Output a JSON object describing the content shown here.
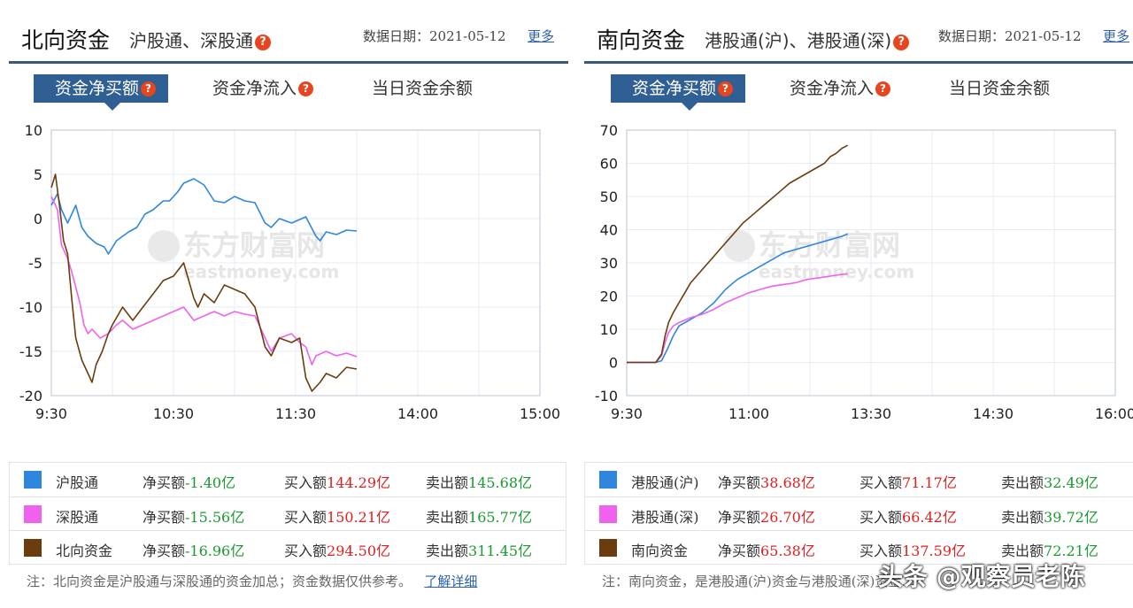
{
  "north": {
    "title": "北向资金",
    "subtitle": "沪股通、深股通",
    "date_label": "数据日期：2021-05-12",
    "more": "更多",
    "tabs": [
      "资金净买额",
      "资金净流入",
      "当日资金余额"
    ],
    "watermark_cn": "东方财富网",
    "watermark_en": "eastmoney.com",
    "legend": [
      {
        "name": "沪股通",
        "color": "#2e86de",
        "net": "净买额-1.40亿",
        "net_prefix": "净买额",
        "net_value": "-1.40亿",
        "buy_prefix": "买入额",
        "buy_value": "144.29亿",
        "sell_prefix": "卖出额",
        "sell_value": "145.68亿"
      },
      {
        "name": "深股通",
        "color": "#f062ee",
        "net_prefix": "净买额",
        "net_value": "-15.56亿",
        "buy_prefix": "买入额",
        "buy_value": "150.21亿",
        "sell_prefix": "卖出额",
        "sell_value": "165.77亿"
      },
      {
        "name": "北向资金",
        "color": "#6b3d0e",
        "net_prefix": "净买额",
        "net_value": "-16.96亿",
        "buy_prefix": "买入额",
        "buy_value": "294.50亿",
        "sell_prefix": "卖出额",
        "sell_value": "311.45亿"
      }
    ],
    "note": "注：北向资金是沪股通与深股通的资金加总；资金数据仅供参考。",
    "note_link": "了解详细"
  },
  "south": {
    "title": "南向资金",
    "subtitle": "港股通(沪)、港股通(深)",
    "date_label": "数据日期：2021-05-12",
    "more": "更多",
    "tabs": [
      "资金净买额",
      "资金净流入",
      "当日资金余额"
    ],
    "watermark_cn": "东方财富网",
    "watermark_en": "eastmoney.com",
    "legend": [
      {
        "name": "港股通(沪)",
        "color": "#2e86de",
        "net_prefix": "净买额",
        "net_value": "38.68亿",
        "buy_prefix": "买入额",
        "buy_value": "71.17亿",
        "sell_prefix": "卖出额",
        "sell_value": "32.49亿"
      },
      {
        "name": "港股通(深)",
        "color": "#f062ee",
        "net_prefix": "净买额",
        "net_value": "26.70亿",
        "buy_prefix": "买入额",
        "buy_value": "66.42亿",
        "sell_prefix": "卖出额",
        "sell_value": "39.72亿"
      },
      {
        "name": "南向资金",
        "color": "#6b3d0e",
        "net_prefix": "净买额",
        "net_value": "65.38亿",
        "buy_prefix": "买入额",
        "buy_value": "137.59亿",
        "sell_prefix": "卖出额",
        "sell_value": "72.21亿"
      }
    ],
    "note": "注：南向资金，是港股通(沪)资金与港股通(深)资金...",
    "note_link": ""
  },
  "overlay_watermark": "头条 @观察员老陈",
  "chart_data": [
    {
      "type": "line",
      "title": "",
      "x_ticks": [
        "9:30",
        "10:30",
        "11:30",
        "14:00",
        "15:00"
      ],
      "x_unit": "minutes_since_open",
      "x_range": [
        0,
        240
      ],
      "y_ticks": [
        10,
        5,
        0,
        -5,
        -10,
        -15,
        -20
      ],
      "ylim": [
        -20,
        10
      ],
      "grid": true,
      "series": [
        {
          "name": "沪股通",
          "color": "#2e86de",
          "x": [
            0,
            3,
            5,
            8,
            12,
            15,
            18,
            22,
            26,
            28,
            32,
            35,
            38,
            42,
            46,
            50,
            55,
            58,
            62,
            65,
            70,
            75,
            80,
            85,
            90,
            95,
            100,
            105,
            108,
            112,
            118,
            125,
            130,
            132,
            135,
            140,
            145,
            150
          ],
          "y": [
            1.5,
            2.8,
            1.0,
            -0.5,
            1.5,
            -1.0,
            -2.0,
            -2.8,
            -3.2,
            -4.0,
            -2.5,
            -2.0,
            -1.5,
            -1.0,
            0.5,
            1.0,
            2.0,
            2.0,
            3.0,
            4.0,
            4.5,
            3.8,
            2.0,
            1.8,
            2.5,
            2.0,
            1.8,
            -0.5,
            -1.0,
            0.0,
            -0.5,
            0.2,
            -2.0,
            -2.5,
            -1.5,
            -1.8,
            -1.3,
            -1.4
          ]
        },
        {
          "name": "深股通",
          "color": "#f062ee",
          "x": [
            0,
            3,
            5,
            8,
            10,
            14,
            16,
            18,
            20,
            24,
            28,
            32,
            35,
            40,
            45,
            50,
            55,
            60,
            65,
            70,
            75,
            80,
            85,
            90,
            95,
            100,
            105,
            108,
            112,
            118,
            122,
            125,
            128,
            130,
            135,
            140,
            145,
            150
          ],
          "y": [
            2.5,
            1.0,
            -3.0,
            -4.5,
            -6.0,
            -9.5,
            -12.0,
            -13.0,
            -12.5,
            -13.5,
            -13.0,
            -12.0,
            -11.5,
            -12.5,
            -12.0,
            -11.5,
            -11.0,
            -10.5,
            -10.0,
            -11.5,
            -11.0,
            -10.5,
            -11.0,
            -10.5,
            -10.8,
            -11.0,
            -13.5,
            -15.0,
            -13.5,
            -13.0,
            -14.0,
            -14.5,
            -16.5,
            -15.5,
            -15.0,
            -15.5,
            -15.2,
            -15.6
          ]
        },
        {
          "name": "北向资金",
          "color": "#6b3d0e",
          "x": [
            0,
            2,
            4,
            6,
            8,
            10,
            12,
            15,
            18,
            20,
            22,
            25,
            28,
            30,
            35,
            40,
            45,
            50,
            55,
            60,
            65,
            70,
            72,
            75,
            80,
            85,
            90,
            95,
            100,
            105,
            108,
            112,
            118,
            122,
            125,
            128,
            132,
            135,
            140,
            145,
            150
          ],
          "y": [
            3.5,
            5.0,
            1.5,
            -2.5,
            -4.0,
            -9.0,
            -13.5,
            -16.0,
            -17.5,
            -18.5,
            -16.5,
            -15.0,
            -13.0,
            -12.0,
            -10.0,
            -11.5,
            -10.0,
            -8.5,
            -7.0,
            -6.5,
            -5.0,
            -9.0,
            -10.0,
            -8.5,
            -9.5,
            -7.5,
            -8.0,
            -8.5,
            -10.0,
            -14.5,
            -15.5,
            -13.5,
            -14.0,
            -13.5,
            -18.0,
            -19.5,
            -18.5,
            -17.5,
            -18.0,
            -16.8,
            -17.0
          ]
        }
      ]
    },
    {
      "type": "line",
      "title": "",
      "x_ticks": [
        "9:30",
        "11:00",
        "13:30",
        "14:30",
        "16:00"
      ],
      "x_unit": "minutes_since_0900",
      "x_range": [
        0,
        420
      ],
      "y_ticks": [
        70,
        60,
        50,
        40,
        30,
        20,
        10,
        0,
        -10
      ],
      "ylim": [
        -10,
        70
      ],
      "grid": true,
      "series": [
        {
          "name": "港股通(沪)",
          "color": "#2e86de",
          "x": [
            0,
            25,
            30,
            35,
            40,
            45,
            55,
            65,
            75,
            85,
            95,
            105,
            115,
            125,
            135,
            145,
            155,
            165,
            175,
            185,
            190
          ],
          "y": [
            0,
            0,
            0.5,
            4,
            8,
            11,
            13,
            15,
            18,
            22,
            25,
            27,
            29,
            31,
            33,
            34,
            35,
            36,
            37,
            38,
            38.7
          ]
        },
        {
          "name": "港股通(深)",
          "color": "#f062ee",
          "x": [
            0,
            25,
            30,
            33,
            36,
            40,
            45,
            55,
            65,
            75,
            85,
            95,
            105,
            115,
            125,
            135,
            145,
            155,
            165,
            175,
            185,
            190
          ],
          "y": [
            0,
            0,
            2,
            6,
            9,
            11,
            12,
            13.5,
            14.5,
            16,
            18,
            19.5,
            21,
            22,
            23,
            23.5,
            24,
            25,
            25.5,
            26,
            26.5,
            26.7
          ]
        },
        {
          "name": "南向资金",
          "color": "#6b3d0e",
          "x": [
            0,
            25,
            30,
            33,
            36,
            40,
            45,
            50,
            55,
            60,
            65,
            70,
            75,
            80,
            85,
            90,
            95,
            100,
            110,
            120,
            130,
            140,
            150,
            160,
            170,
            175,
            180,
            185,
            190
          ],
          "y": [
            0,
            0,
            2.5,
            8,
            12,
            15,
            18,
            21,
            24,
            26,
            28,
            30,
            32,
            34,
            36,
            38,
            40,
            42,
            45,
            48,
            51,
            54,
            56,
            58,
            60,
            62,
            63,
            64.5,
            65.4
          ]
        }
      ]
    }
  ]
}
